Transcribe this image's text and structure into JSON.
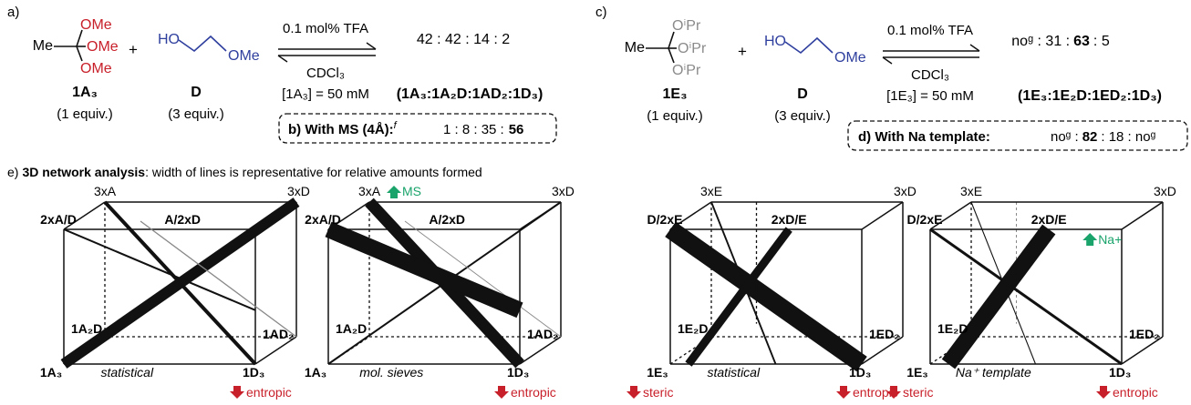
{
  "panel_a": {
    "label": "a)",
    "methyl": "Me",
    "ome_1": "OMe",
    "ome_2": "OMe",
    "ome_3": "OMe",
    "plus": "+",
    "diol_ho": "HO",
    "diol_ome": "OMe",
    "cond_top": "0.1 mol% TFA",
    "cond_solvent": "CDCl₃",
    "cond_conc": "[1A₃] = 50 mM",
    "reagent_1_name": "1A₃",
    "reagent_1_equiv": "(1 equiv.)",
    "reagent_2_name": "D",
    "reagent_2_equiv": "(3 equiv.)",
    "ratio": "42 : 42 : 14 : 2",
    "species": "(1A₃:1A₂D:1AD₂:1D₃)",
    "box_label": "b) With MS (4Å):",
    "box_footnote": "f",
    "box_ratio_plain": "1 : 8 : 35 :",
    "box_ratio_bold": "56"
  },
  "panel_c": {
    "label": "c)",
    "methyl": "Me",
    "oipr_1": "OⁱPr",
    "oipr_2": "OⁱPr",
    "oipr_3": "OⁱPr",
    "plus": "+",
    "diol_ho": "HO",
    "diol_ome": "OMe",
    "cond_top": "0.1 mol% TFA",
    "cond_solvent": "CDCl₃",
    "cond_conc": "[1E₃] = 50 mM",
    "reagent_1_name": "1E₃",
    "reagent_1_equiv": "(1 equiv.)",
    "reagent_2_name": "D",
    "reagent_2_equiv": "(3 equiv.)",
    "ratio_1": "noᵍ : 31 :",
    "ratio_2": "63",
    "ratio_3": ": 5",
    "species": "(1E₃:1E₂D:1ED₂:1D₃)",
    "box_label": "d) With Na template:",
    "box_ratio_1": "noᵍ :",
    "box_ratio_2": "82",
    "box_ratio_3": ": 18 : noᵍ"
  },
  "panel_e": {
    "label": "e)",
    "title_bold": "3D network analysis",
    "title_rest": ": width of lines is representative for relative amounts formed",
    "cube_1": {
      "top_left_back": "3xA",
      "top_right_back": "3xD",
      "top_left_front": "2xA/D",
      "top_mid_front": "A/2xD",
      "left_mid": "1A₂D",
      "right_mid": "1AD₂",
      "bottom_left": "1A₃",
      "bottom_right": "1D₃",
      "caption": "statistical",
      "arrow_label": "entropic"
    },
    "cube_2": {
      "top_left_back": "3xA",
      "top_right_back": "3xD",
      "top_left_front": "2xA/D",
      "top_mid_front": "A/2xD",
      "left_mid": "1A₂D",
      "right_mid": "1AD₂",
      "bottom_left": "1A₃",
      "bottom_right": "1D₃",
      "caption": "mol. sieves",
      "arrow_label": "entropic",
      "up_label": "MS"
    },
    "cube_3": {
      "top_left_back": "3xE",
      "top_right_back": "3xD",
      "top_left_front": "D/2xE",
      "top_mid_front": "2xD/E",
      "left_mid": "1E₂D",
      "right_mid": "1ED₂",
      "bottom_left": "1E₃",
      "bottom_right": "1D₃",
      "caption": "statistical",
      "arrow_label": "entropic",
      "steric_label": "steric"
    },
    "cube_4": {
      "top_left_back": "3xE",
      "top_right_back": "3xD",
      "top_left_front": "D/2xE",
      "top_mid_front": "2xD/E",
      "left_mid": "1E₂D",
      "right_mid": "1ED₂",
      "bottom_left": "1E₃",
      "bottom_right": "1D₃",
      "caption": "Na⁺ template",
      "arrow_label": "entropic",
      "steric_label": "steric",
      "up_label": "Na+"
    }
  },
  "colors": {
    "methoxy_red": "#c8202a",
    "diol_blue": "#2f3f9e",
    "isopropoxy_grey": "#8a8a8a",
    "up_arrow_green": "#1aa36b",
    "down_arrow_red": "#c8202a"
  }
}
